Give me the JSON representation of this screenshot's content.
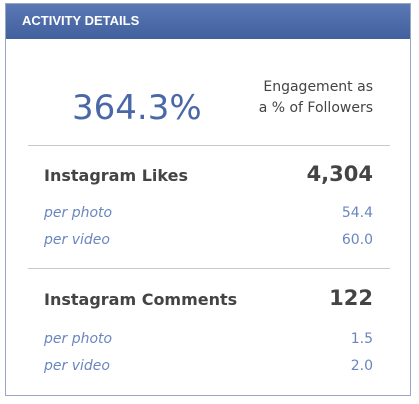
{
  "header": {
    "title": "ACTIVITY DETAILS"
  },
  "summary": {
    "value": "364.3%",
    "label": [
      "Engagement as",
      "a % of Followers"
    ]
  },
  "sections": [
    {
      "title": "Instagram Likes",
      "total": "4,304",
      "rows": [
        {
          "label": "per photo",
          "value": "54.4"
        },
        {
          "label": "per video",
          "value": "60.0"
        }
      ]
    },
    {
      "title": "Instagram Comments",
      "total": "122",
      "rows": [
        {
          "label": "per photo",
          "value": "1.5"
        },
        {
          "label": "per video",
          "value": "2.0"
        }
      ]
    }
  ]
}
